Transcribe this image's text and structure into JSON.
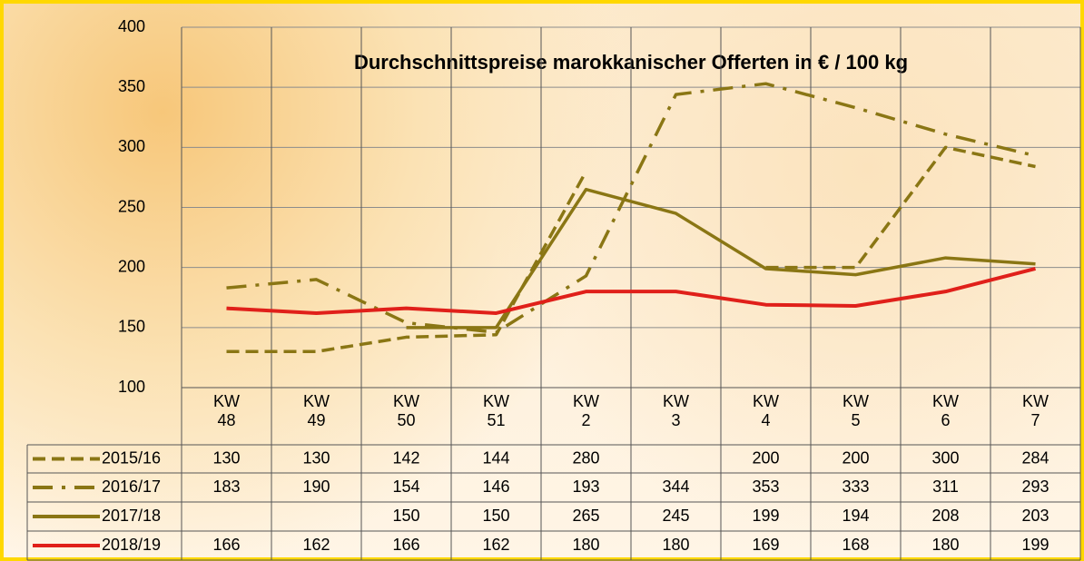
{
  "chart_data": {
    "type": "line",
    "title": "Durchschnittspreise marokkanischer Offerten in € / 100 kg",
    "categories": [
      "KW 48",
      "KW 49",
      "KW 50",
      "KW 51",
      "KW 2",
      "KW 3",
      "KW 4",
      "KW 5",
      "KW 6",
      "KW 7"
    ],
    "series": [
      {
        "name": "2015/16",
        "color": "#8a7614",
        "style": "dashed",
        "values": [
          130,
          130,
          142,
          144,
          280,
          null,
          200,
          200,
          300,
          284
        ]
      },
      {
        "name": "2016/17",
        "color": "#8a7614",
        "style": "dash-dot",
        "values": [
          183,
          190,
          154,
          146,
          193,
          344,
          353,
          333,
          311,
          293
        ]
      },
      {
        "name": "2017/18",
        "color": "#8a7614",
        "style": "solid",
        "values": [
          null,
          null,
          150,
          150,
          265,
          245,
          199,
          194,
          208,
          203
        ]
      },
      {
        "name": "2018/19",
        "color": "#e0201a",
        "style": "solid",
        "values": [
          166,
          162,
          166,
          162,
          180,
          180,
          169,
          168,
          180,
          199
        ]
      }
    ],
    "ylim": [
      100,
      400
    ],
    "yticks": [
      100,
      150,
      200,
      250,
      300,
      350,
      400
    ],
    "grid": true
  }
}
